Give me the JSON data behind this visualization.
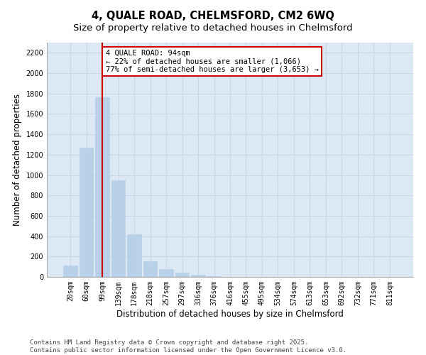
{
  "title_line1": "4, QUALE ROAD, CHELMSFORD, CM2 6WQ",
  "title_line2": "Size of property relative to detached houses in Chelmsford",
  "xlabel": "Distribution of detached houses by size in Chelmsford",
  "ylabel": "Number of detached properties",
  "categories": [
    "20sqm",
    "60sqm",
    "99sqm",
    "139sqm",
    "178sqm",
    "218sqm",
    "257sqm",
    "297sqm",
    "336sqm",
    "376sqm",
    "416sqm",
    "455sqm",
    "495sqm",
    "534sqm",
    "574sqm",
    "613sqm",
    "653sqm",
    "692sqm",
    "732sqm",
    "771sqm",
    "811sqm"
  ],
  "values": [
    110,
    1270,
    1760,
    950,
    415,
    155,
    75,
    40,
    20,
    5,
    2,
    1,
    0,
    0,
    0,
    0,
    0,
    0,
    0,
    0,
    0
  ],
  "bar_color": "#b8d0e8",
  "bar_edge_color": "#b8d0e8",
  "grid_color": "#c8d8e8",
  "background_color": "#dce8f4",
  "vline_x": 2,
  "vline_color": "#cc0000",
  "annotation_text": "4 QUALE ROAD: 94sqm\n← 22% of detached houses are smaller (1,066)\n77% of semi-detached houses are larger (3,653) →",
  "annotation_box_color": "#cc0000",
  "ylim": [
    0,
    2300
  ],
  "yticks": [
    0,
    200,
    400,
    600,
    800,
    1000,
    1200,
    1400,
    1600,
    1800,
    2000,
    2200
  ],
  "footer_line1": "Contains HM Land Registry data © Crown copyright and database right 2025.",
  "footer_line2": "Contains public sector information licensed under the Open Government Licence v3.0.",
  "title_fontsize": 10.5,
  "subtitle_fontsize": 9.5,
  "axis_label_fontsize": 8.5,
  "tick_fontsize": 7,
  "annotation_fontsize": 7.5,
  "footer_fontsize": 6.5
}
